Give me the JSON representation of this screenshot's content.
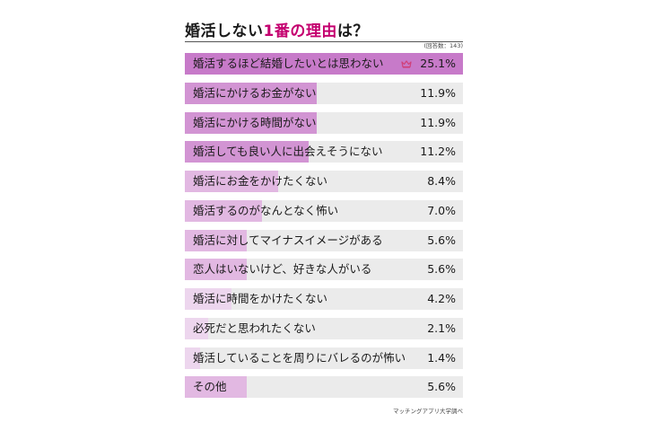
{
  "title": {
    "prefix": "婚活しない",
    "highlight": "1番の理由",
    "suffix": "は？"
  },
  "respondents_note": "(回答数：143)",
  "source_note": "マッチングアプリ大学調べ",
  "colors": {
    "accent": "#c4006f",
    "top_bar": "#c77ac9",
    "bar_dark": "#d294d3",
    "bar_mid": "#e2b8e2",
    "bar_light": "#edd6ee",
    "track": "#ebebeb",
    "crown": "#d0407a"
  },
  "top_rank_icon": "crown-icon",
  "chart_data": {
    "type": "bar",
    "orientation": "horizontal",
    "title": "婚活しない1番の理由は？",
    "unit": "%",
    "xlim": [
      0,
      25.1
    ],
    "grid": false,
    "categories": [
      "婚活するほど結婚したいとは思わない",
      "婚活にかけるお金がない",
      "婚活にかける時間がない",
      "婚活しても良い人に出会えそうにない",
      "婚活にお金をかけたくない",
      "婚活するのがなんとなく怖い",
      "婚活に対してマイナスイメージがある",
      "恋人はいないけど、好きな人がいる",
      "婚活に時間をかけたくない",
      "必死だと思われたくない",
      "婚活していることを周りにバレるのが怖い",
      "その他"
    ],
    "values": [
      25.1,
      11.9,
      11.9,
      11.2,
      8.4,
      7.0,
      5.6,
      5.6,
      4.2,
      2.1,
      1.4,
      5.6
    ],
    "value_labels": [
      "25.1%",
      "11.9%",
      "11.9%",
      "11.2%",
      "8.4%",
      "7.0%",
      "5.6%",
      "5.6%",
      "4.2%",
      "2.1%",
      "1.4%",
      "5.6%"
    ]
  }
}
